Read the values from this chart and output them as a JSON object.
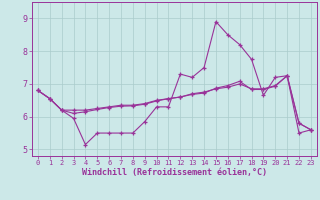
{
  "xlabel": "Windchill (Refroidissement éolien,°C)",
  "background_color": "#cce8e8",
  "grid_color": "#aacccc",
  "line_color": "#993399",
  "xlim": [
    -0.5,
    23.5
  ],
  "ylim": [
    4.8,
    9.5
  ],
  "yticks": [
    5,
    6,
    7,
    8,
    9
  ],
  "xticks": [
    0,
    1,
    2,
    3,
    4,
    5,
    6,
    7,
    8,
    9,
    10,
    11,
    12,
    13,
    14,
    15,
    16,
    17,
    18,
    19,
    20,
    21,
    22,
    23
  ],
  "series1_x": [
    0,
    1,
    2,
    3,
    4,
    5,
    6,
    7,
    8,
    9,
    10,
    11,
    12,
    13,
    14,
    15,
    16,
    17,
    18,
    19,
    20,
    21,
    22,
    23
  ],
  "series1_y": [
    6.8,
    6.55,
    6.2,
    5.95,
    5.15,
    5.5,
    5.5,
    5.5,
    5.5,
    5.85,
    6.3,
    6.3,
    7.3,
    7.2,
    7.5,
    8.9,
    8.5,
    8.2,
    7.75,
    6.65,
    7.2,
    7.25,
    5.5,
    5.6
  ],
  "series2_x": [
    0,
    1,
    2,
    3,
    4,
    5,
    6,
    7,
    8,
    9,
    10,
    11,
    12,
    13,
    14,
    15,
    16,
    17,
    18,
    19,
    20,
    21,
    22,
    23
  ],
  "series2_y": [
    6.8,
    6.55,
    6.2,
    6.2,
    6.2,
    6.25,
    6.3,
    6.35,
    6.35,
    6.4,
    6.5,
    6.55,
    6.6,
    6.7,
    6.75,
    6.85,
    6.9,
    7.0,
    6.85,
    6.85,
    6.95,
    7.25,
    5.8,
    5.6
  ],
  "series3_x": [
    0,
    1,
    2,
    3,
    4,
    5,
    6,
    7,
    8,
    9,
    10,
    11,
    12,
    13,
    14,
    15,
    16,
    17,
    18,
    19,
    20,
    21,
    22,
    23
  ],
  "series3_y": [
    6.8,
    6.55,
    6.2,
    6.1,
    6.15,
    6.22,
    6.28,
    6.32,
    6.33,
    6.38,
    6.48,
    6.55,
    6.6,
    6.68,
    6.72,
    6.87,
    6.95,
    7.08,
    6.83,
    6.83,
    6.93,
    7.25,
    5.8,
    5.6
  ],
  "marker": "+",
  "markersize": 3,
  "linewidth": 0.8
}
